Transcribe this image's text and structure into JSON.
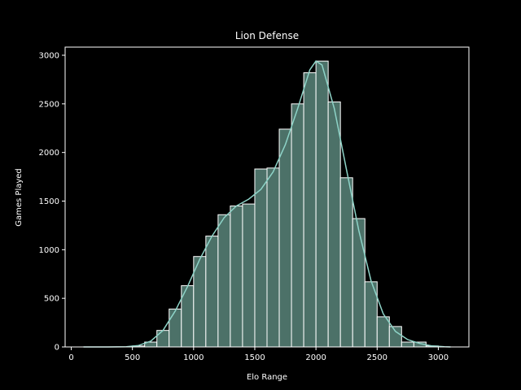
{
  "chart_data": {
    "type": "bar",
    "subtype": "histogram",
    "title": "Lion Defense",
    "xlabel": "Elo Range",
    "ylabel": "Games Played",
    "xlim": [
      -50,
      3250
    ],
    "ylim": [
      0,
      3000
    ],
    "xticks": [
      0,
      500,
      1000,
      1500,
      2000,
      2500,
      3000
    ],
    "yticks": [
      0,
      500,
      1000,
      1500,
      2000,
      2500,
      3000
    ],
    "grid": false,
    "bin_width": 100,
    "bins": [
      {
        "x0": 100,
        "x1": 200,
        "count": 0
      },
      {
        "x0": 200,
        "x1": 300,
        "count": 0
      },
      {
        "x0": 300,
        "x1": 400,
        "count": 0
      },
      {
        "x0": 400,
        "x1": 500,
        "count": 0
      },
      {
        "x0": 500,
        "x1": 600,
        "count": 10
      },
      {
        "x0": 600,
        "x1": 700,
        "count": 50
      },
      {
        "x0": 700,
        "x1": 800,
        "count": 170
      },
      {
        "x0": 800,
        "x1": 900,
        "count": 390
      },
      {
        "x0": 900,
        "x1": 1000,
        "count": 630
      },
      {
        "x0": 1000,
        "x1": 1100,
        "count": 930
      },
      {
        "x0": 1100,
        "x1": 1200,
        "count": 1140
      },
      {
        "x0": 1200,
        "x1": 1300,
        "count": 1360
      },
      {
        "x0": 1300,
        "x1": 1400,
        "count": 1450
      },
      {
        "x0": 1400,
        "x1": 1500,
        "count": 1470
      },
      {
        "x0": 1500,
        "x1": 1600,
        "count": 1830
      },
      {
        "x0": 1600,
        "x1": 1700,
        "count": 1840
      },
      {
        "x0": 1700,
        "x1": 1800,
        "count": 2240
      },
      {
        "x0": 1800,
        "x1": 1900,
        "count": 2500
      },
      {
        "x0": 1900,
        "x1": 2000,
        "count": 2820
      },
      {
        "x0": 2000,
        "x1": 2100,
        "count": 2940
      },
      {
        "x0": 2100,
        "x1": 2200,
        "count": 2520
      },
      {
        "x0": 2200,
        "x1": 2300,
        "count": 1740
      },
      {
        "x0": 2300,
        "x1": 2400,
        "count": 1320
      },
      {
        "x0": 2400,
        "x1": 2500,
        "count": 670
      },
      {
        "x0": 2500,
        "x1": 2600,
        "count": 310
      },
      {
        "x0": 2600,
        "x1": 2700,
        "count": 210
      },
      {
        "x0": 2700,
        "x1": 2800,
        "count": 50
      },
      {
        "x0": 2800,
        "x1": 2900,
        "count": 50
      },
      {
        "x0": 2900,
        "x1": 3000,
        "count": 10
      },
      {
        "x0": 3000,
        "x1": 3100,
        "count": 0
      }
    ],
    "kde": {
      "x": [
        100,
        300,
        450,
        550,
        650,
        750,
        850,
        950,
        1050,
        1150,
        1250,
        1350,
        1450,
        1550,
        1650,
        1750,
        1850,
        1950,
        2000,
        2050,
        2150,
        2250,
        2350,
        2450,
        2550,
        2650,
        2750,
        2850,
        2950,
        3050,
        3100
      ],
      "y": [
        0,
        0,
        2,
        15,
        60,
        170,
        370,
        620,
        900,
        1140,
        1330,
        1450,
        1520,
        1620,
        1800,
        2080,
        2450,
        2850,
        2940,
        2900,
        2450,
        1820,
        1200,
        680,
        340,
        160,
        75,
        35,
        10,
        2,
        0
      ]
    },
    "colors": {
      "background": "#000000",
      "bar_fill": "#4c7168",
      "bar_edge": "#ffffff",
      "kde_line": "#8dd3c7",
      "axis": "#ffffff",
      "text": "#ffffff"
    }
  }
}
